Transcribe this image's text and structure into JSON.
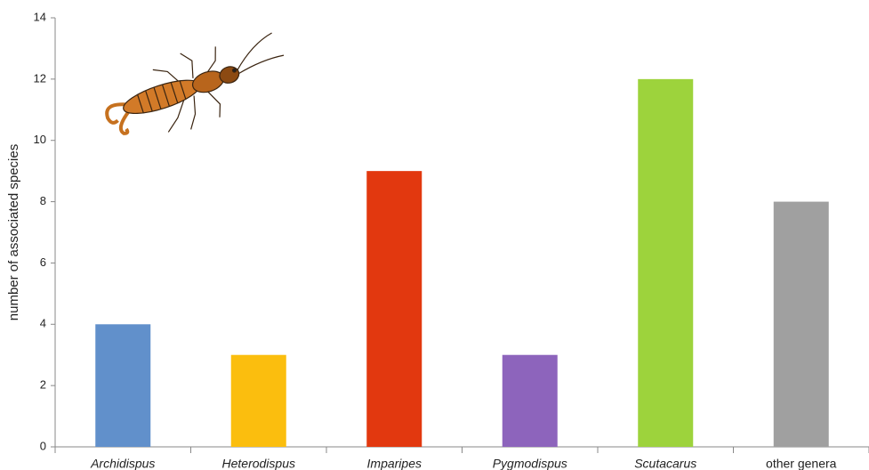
{
  "chart_data": {
    "type": "bar",
    "y_label": "number of associated species",
    "categories": [
      "Archidispus",
      "Heterodispus",
      "Imparipes",
      "Pygmodispus",
      "Scutacarus",
      "other genera"
    ],
    "label_style": [
      "italic",
      "italic",
      "italic",
      "italic",
      "italic",
      "normal"
    ],
    "values": [
      4,
      3,
      9,
      3,
      12,
      8
    ],
    "colors": [
      "#6190cb",
      "#fbbe0e",
      "#e2380f",
      "#8d64bc",
      "#9dd33c",
      "#a0a0a0"
    ],
    "ylim": [
      0,
      14
    ],
    "yticks": [
      0,
      2,
      4,
      6,
      8,
      10,
      12,
      14
    ],
    "grid": false
  }
}
